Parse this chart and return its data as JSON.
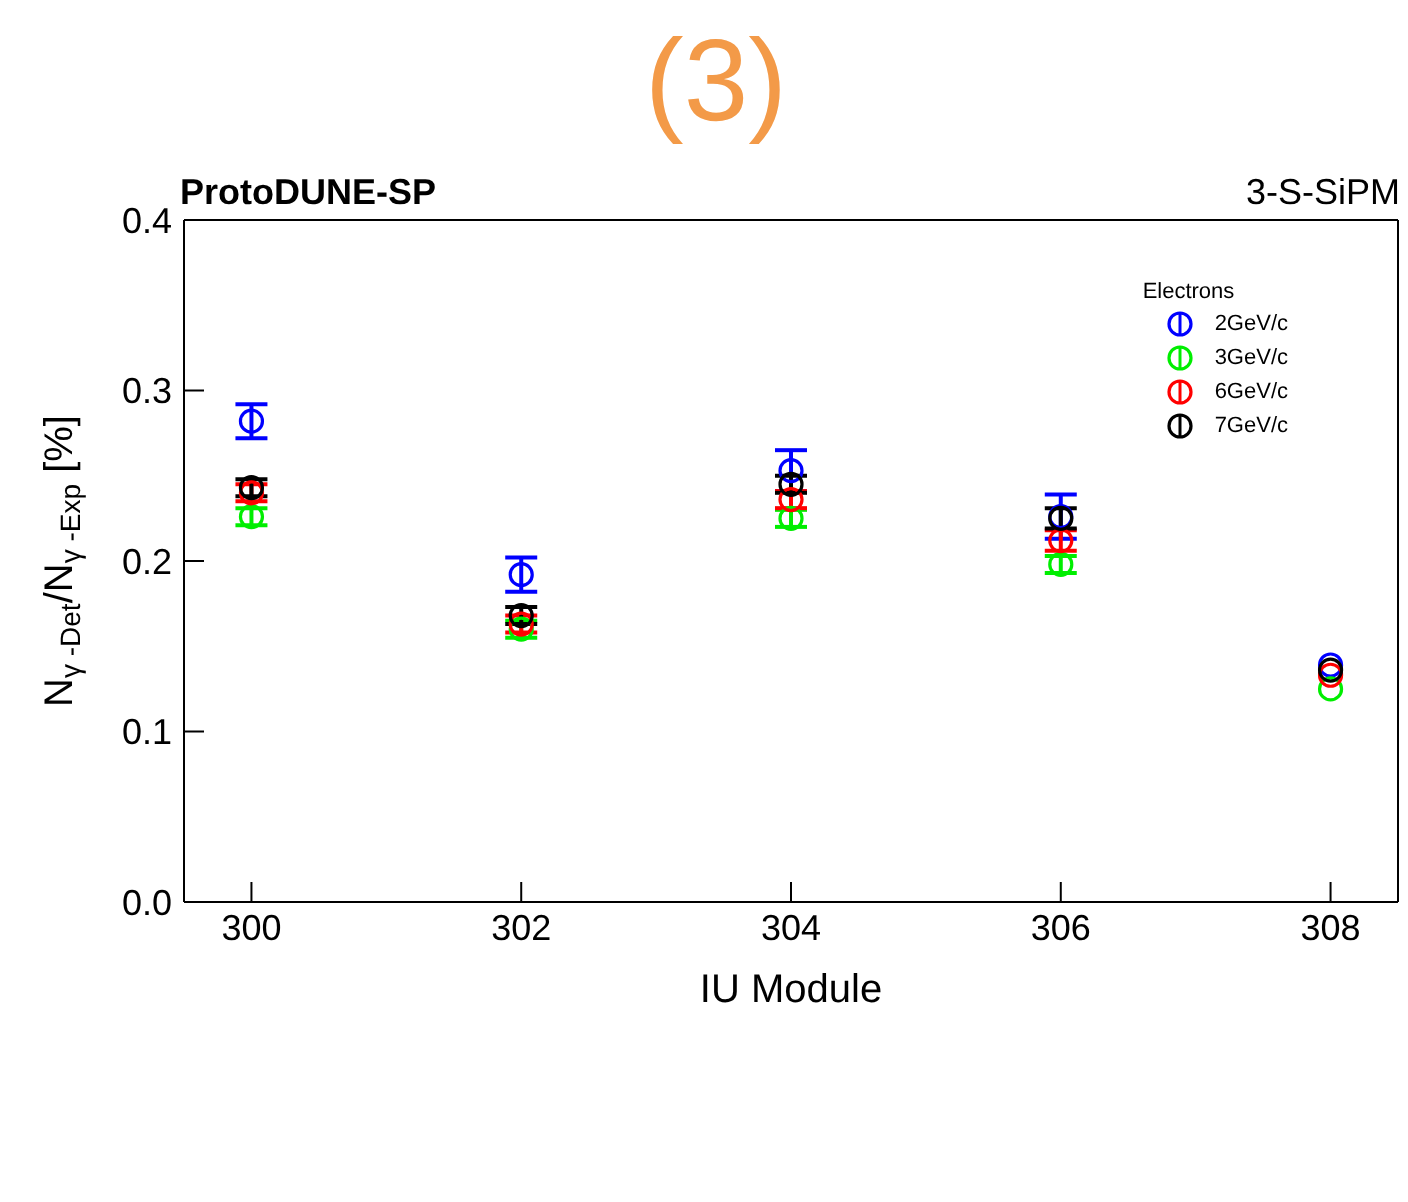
{
  "chart_data": {
    "type": "scatter",
    "title": "(3)",
    "subtitle": "ProtoDUNE-SP",
    "annotations": [
      "3-S-SiPM"
    ],
    "xlabel": "IU Module",
    "ylabel": "N$_{γ -Det}$/N$_{γ -Exp}$ [%]",
    "legend_title": "Electrons",
    "legend": "top right",
    "marker": "circle",
    "x": [
      300,
      302,
      304,
      306,
      308
    ],
    "xlim": [
      299.5,
      308.5
    ],
    "xticks": [
      300,
      302,
      304,
      306,
      308
    ],
    "ylim": [
      0,
      0.4
    ],
    "yticks": [
      {
        "value": 0,
        "label": "0.0"
      },
      0.1,
      0.2,
      0.3,
      0.4
    ],
    "series": [
      {
        "name": "2GeV/c",
        "color": "#0000ff",
        "values": [
          0.282,
          0.192,
          0.253,
          0.226,
          0.139
        ],
        "errors": [
          0.01,
          0.01,
          0.012,
          0.013,
          null
        ]
      },
      {
        "name": "3GeV/c",
        "color": "#00ee00",
        "values": [
          0.226,
          0.16,
          0.225,
          0.198,
          0.125
        ],
        "errors": [
          0.005,
          0.005,
          0.005,
          0.005,
          null
        ]
      },
      {
        "name": "6GeV/c",
        "color": "#ff0000",
        "values": [
          0.24,
          0.163,
          0.236,
          0.212,
          0.133
        ],
        "errors": [
          0.005,
          0.005,
          0.005,
          0.006,
          null
        ]
      },
      {
        "name": "7GeV/c",
        "color": "#000000",
        "values": [
          0.243,
          0.168,
          0.245,
          0.225,
          0.136
        ],
        "errors": [
          0.005,
          0.005,
          0.005,
          0.006,
          null
        ]
      }
    ]
  }
}
